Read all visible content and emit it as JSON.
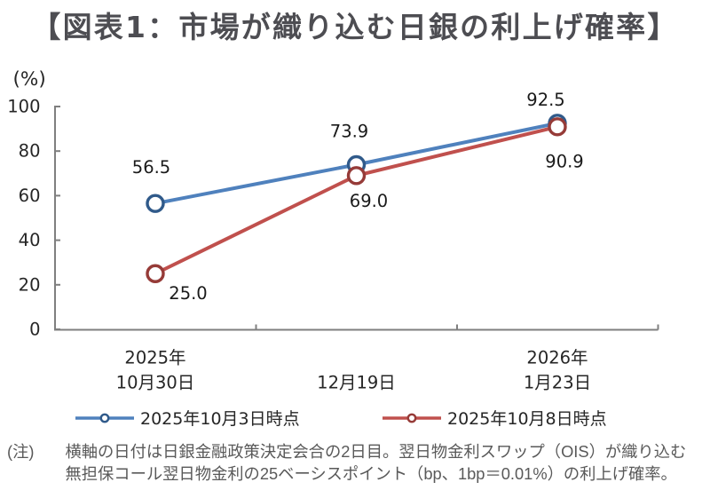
{
  "title": "【図表1：市場が織り込む日銀の利上げ確率】",
  "note": {
    "prefix": "(注)",
    "line1": "横軸の日付は日銀金融政策決定会合の2日目。翌日物金利スワップ（OIS）が織り込む",
    "line2": "無担保コール翌日物金利の25ベーシスポイント（bp、1bp＝0.01%）の利上げ確率。"
  },
  "chart_data": {
    "type": "line",
    "title": "【図表1：市場が織り込む日銀の利上げ確率】",
    "unit_label": "(%)",
    "xlabel": "",
    "ylabel": "(%)",
    "ylim": [
      0,
      100
    ],
    "yticks": [
      0,
      20,
      40,
      60,
      80,
      100
    ],
    "grid": false,
    "legend_position": "bottom",
    "categories": [
      {
        "line1": "2025年",
        "line2": "10月30日"
      },
      {
        "line1": "",
        "line2": "12月19日"
      },
      {
        "line1": "2026年",
        "line2": "1月23日"
      }
    ],
    "series": [
      {
        "name": "2025年10月3日時点",
        "values": [
          56.5,
          73.9,
          92.5
        ],
        "labels": [
          "56.5",
          "73.9",
          "92.5"
        ],
        "color": "#4F81BD",
        "marker_color": "#305A8A"
      },
      {
        "name": "2025年10月8日時点",
        "values": [
          25.0,
          69.0,
          90.9
        ],
        "labels": [
          "25.0",
          "69.0",
          "90.9"
        ],
        "color": "#C0504D",
        "marker_color": "#963B38"
      }
    ],
    "axis_color": "#7F7F7F",
    "tick_label_color": "#262626",
    "data_label_color": "#1a1a1a"
  }
}
